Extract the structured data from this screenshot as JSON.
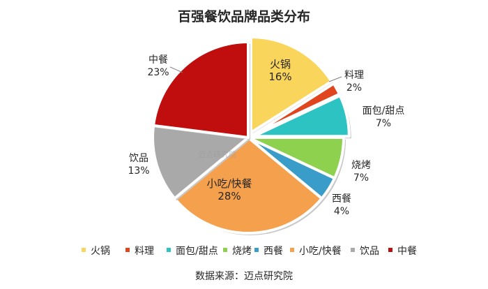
{
  "chart_data": {
    "type": "pie",
    "title": "百强餐饮品牌品类分布",
    "slices": [
      {
        "name": "火锅",
        "value": 16,
        "label": "16%",
        "color": "#FAD55C",
        "explode": 1
      },
      {
        "name": "料理",
        "value": 2,
        "label": "2%",
        "color": "#E0451F",
        "explode": 1
      },
      {
        "name": "面包/甜点",
        "value": 7,
        "label": "7%",
        "color": "#2EC3C3",
        "explode": 1
      },
      {
        "name": "烧烤",
        "value": 7,
        "label": "7%",
        "color": "#8DD14F",
        "explode": 0
      },
      {
        "name": "西餐",
        "value": 4,
        "label": "4%",
        "color": "#3A9DC9",
        "explode": 0
      },
      {
        "name": "小吃/快餐",
        "value": 28,
        "label": "28%",
        "color": "#F5A04C",
        "explode": 0
      },
      {
        "name": "饮品",
        "value": 13,
        "label": "13%",
        "color": "#A9A9A9",
        "explode": 0
      },
      {
        "name": "中餐",
        "value": 23,
        "label": "23%",
        "color": "#C00D0D",
        "explode": 0
      }
    ],
    "legend_position": "bottom"
  },
  "watermark": "迈点研究院",
  "source": "数据来源：迈点研究院"
}
